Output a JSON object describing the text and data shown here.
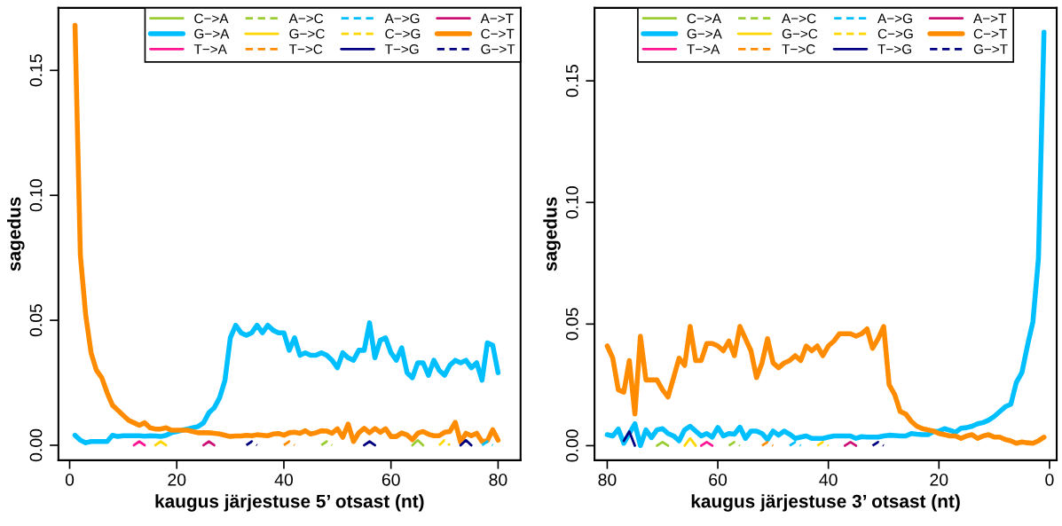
{
  "chart_data": [
    {
      "type": "line",
      "xlabel": "kaugus järjestuse 5’ otsast (nt)",
      "ylabel": "sagedus",
      "xlim": [
        -2.1,
        84.2
      ],
      "ylim": [
        -0.006,
        0.175
      ],
      "xticks": [
        0,
        20,
        40,
        60,
        80
      ],
      "yticks": [
        {
          "value": 0,
          "label": "0.00"
        },
        {
          "value": 0.05,
          "label": "0.05"
        },
        {
          "value": 0.1,
          "label": "0.10"
        },
        {
          "value": 0.15,
          "label": "0.15"
        }
      ],
      "grid": false,
      "legend": "top right",
      "x": [
        1,
        2,
        3,
        4,
        5,
        6,
        7,
        8,
        9,
        10,
        11,
        12,
        13,
        14,
        15,
        16,
        17,
        18,
        19,
        20,
        21,
        22,
        23,
        24,
        25,
        26,
        27,
        28,
        29,
        30,
        31,
        32,
        33,
        34,
        35,
        36,
        37,
        38,
        39,
        40,
        41,
        42,
        43,
        44,
        45,
        46,
        47,
        48,
        49,
        50,
        51,
        52,
        53,
        54,
        55,
        56,
        57,
        58,
        59,
        60,
        61,
        62,
        63,
        64,
        65,
        66,
        67,
        68,
        69,
        70,
        71,
        72,
        73,
        74,
        75,
        76,
        77,
        78,
        79,
        80
      ],
      "series": [
        {
          "name": "C−>A",
          "color": "#9acd32",
          "line_style": "solid",
          "x": [
            64,
            65,
            66
          ],
          "values": [
            0,
            0.002,
            0
          ]
        },
        {
          "name": "G−>A",
          "color": "#00bfff",
          "line_style": "solid",
          "values": [
            0.004,
            0.002,
            0.001,
            0.0015,
            0.0015,
            0.0015,
            0.0015,
            0.004,
            0.0035,
            0.0038,
            0.0038,
            0.0038,
            0.0038,
            0.0036,
            0.0038,
            0.0037,
            0.0035,
            0.004,
            0.005,
            0.0055,
            0.006,
            0.0065,
            0.007,
            0.0075,
            0.009,
            0.013,
            0.015,
            0.019,
            0.026,
            0.043,
            0.048,
            0.045,
            0.044,
            0.045,
            0.048,
            0.045,
            0.048,
            0.046,
            0.045,
            0.045,
            0.038,
            0.043,
            0.036,
            0.037,
            0.036,
            0.036,
            0.037,
            0.036,
            0.034,
            0.031,
            0.037,
            0.035,
            0.034,
            0.038,
            0.038,
            0.049,
            0.035,
            0.042,
            0.043,
            0.037,
            0.034,
            0.039,
            0.029,
            0.027,
            0.033,
            0.033,
            0.028,
            0.034,
            0.03,
            0.028,
            0.032,
            0.034,
            0.033,
            0.034,
            0.031,
            0.033,
            0.026,
            0.041,
            0.04,
            0.029
          ]
        },
        {
          "name": "T−>A",
          "color": "#ff1493",
          "line_style": "solid",
          "x": [
            12,
            13,
            14
          ],
          "values": [
            0,
            0.0015,
            0
          ]
        },
        {
          "name": "A−>C",
          "color": "#9acd32",
          "line_style": "dashed",
          "x": [
            47,
            48,
            49
          ],
          "values": [
            0,
            0.0015,
            0
          ]
        },
        {
          "name": "G−>C",
          "color": "#ffd700",
          "line_style": "solid",
          "x": [
            16,
            17,
            18
          ],
          "values": [
            0,
            0.0015,
            0
          ]
        },
        {
          "name": "T−>C",
          "color": "#ff8c00",
          "line_style": "dashed",
          "x": [
            40,
            41,
            42
          ],
          "values": [
            0,
            0.0015,
            0
          ]
        },
        {
          "name": "A−>G",
          "color": "#00bfff",
          "line_style": "dashed",
          "x": [
            77,
            78,
            79
          ],
          "values": [
            0,
            0.0015,
            0
          ]
        },
        {
          "name": "C−>G",
          "color": "#ffd700",
          "line_style": "dashed",
          "x": [
            69,
            70,
            71
          ],
          "values": [
            0,
            0.002,
            0
          ]
        },
        {
          "name": "T−>G",
          "color": "#000080",
          "line_style": "solid",
          "x": [
            55,
            56,
            57,
            65,
            73,
            74,
            75
          ],
          "values": [
            0,
            0.0015,
            0,
            null,
            0,
            0.002,
            0
          ]
        },
        {
          "name": "A−>T",
          "color": "#cd1076",
          "line_style": "solid",
          "x": [
            25,
            26,
            27
          ],
          "values": [
            0,
            0.0015,
            0
          ]
        },
        {
          "name": "C−>T",
          "color": "#ff8c00",
          "line_style": "solid",
          "values": [
            0.168,
            0.076,
            0.052,
            0.037,
            0.03,
            0.027,
            0.021,
            0.016,
            0.014,
            0.012,
            0.01,
            0.009,
            0.008,
            0.009,
            0.007,
            0.0065,
            0.0065,
            0.007,
            0.006,
            0.006,
            0.006,
            0.006,
            0.0055,
            0.005,
            0.005,
            0.005,
            0.0048,
            0.0045,
            0.004,
            0.0035,
            0.0037,
            0.0037,
            0.004,
            0.0038,
            0.0042,
            0.004,
            0.0038,
            0.0045,
            0.0047,
            0.004,
            0.005,
            0.0052,
            0.0048,
            0.0058,
            0.0045,
            0.005,
            0.0058,
            0.0057,
            0.0048,
            0.0066,
            0.0032,
            0.0085,
            0.0015,
            0.005,
            0.0068,
            0.005,
            0.0067,
            0.0052,
            0.0066,
            0.0035,
            0.0035,
            0.0049,
            0.0041,
            0.0022,
            0.0048,
            0.0055,
            0.0044,
            0.0038,
            0.0038,
            0.0052,
            0.0055,
            0.0092,
            0.0012,
            0.0048,
            0.0038,
            0.0048,
            0.0015,
            0.0018,
            0.0062,
            0.002
          ]
        },
        {
          "name": "G−>T",
          "color": "#000080",
          "line_style": "dashed",
          "x": [
            33,
            34,
            35
          ],
          "values": [
            0,
            0.0015,
            0
          ]
        }
      ]
    },
    {
      "type": "line",
      "xlabel": "kaugus järjestuse 3’ otsast (nt)",
      "ylabel": "sagedus",
      "xlim": [
        82.3,
        -1.3
      ],
      "ylim": [
        -0.006,
        0.18
      ],
      "xticks": [
        0,
        20,
        40,
        60,
        80
      ],
      "yticks": [
        {
          "value": 0,
          "label": "0.00"
        },
        {
          "value": 0.05,
          "label": "0.05"
        },
        {
          "value": 0.1,
          "label": "0.10"
        },
        {
          "value": 0.15,
          "label": "0.15"
        }
      ],
      "grid": false,
      "legend": "top",
      "x": [
        80,
        79,
        78,
        77,
        76,
        75,
        74,
        73,
        72,
        71,
        70,
        69,
        68,
        67,
        66,
        65,
        64,
        63,
        62,
        61,
        60,
        59,
        58,
        57,
        56,
        55,
        54,
        53,
        52,
        51,
        50,
        49,
        48,
        47,
        46,
        45,
        44,
        43,
        42,
        41,
        40,
        39,
        38,
        37,
        36,
        35,
        34,
        33,
        32,
        31,
        30,
        29,
        28,
        27,
        26,
        25,
        24,
        23,
        22,
        21,
        20,
        19,
        18,
        17,
        16,
        15,
        14,
        13,
        12,
        11,
        10,
        9,
        8,
        7,
        6,
        5,
        4,
        3,
        2,
        1
      ],
      "series": [
        {
          "name": "C−>A",
          "color": "#9acd32",
          "line_style": "solid",
          "x": [
            71,
            70,
            69
          ],
          "values": [
            0,
            0.0015,
            0
          ]
        },
        {
          "name": "G−>A",
          "color": "#00bfff",
          "line_style": "solid",
          "values": [
            0.0045,
            0.004,
            0.0068,
            0.001,
            0.005,
            0.009,
            0,
            0.0065,
            0.0033,
            0.0065,
            0.007,
            0.005,
            0.004,
            0.002,
            0.0065,
            0.008,
            0.006,
            0.004,
            0.005,
            0.0035,
            0.0075,
            0.004,
            0.005,
            0.0047,
            0.0076,
            0.003,
            0.006,
            0.006,
            0.005,
            0.0025,
            0.006,
            0.0043,
            0.006,
            0.0047,
            0.003,
            0.0035,
            0.004,
            0.003,
            0.003,
            0.003,
            0.0035,
            0.004,
            0.004,
            0.004,
            0.004,
            0.003,
            0.0037,
            0.0035,
            0.0035,
            0.0035,
            0.004,
            0.0043,
            0.0042,
            0.004,
            0.004,
            0.005,
            0.0047,
            0.0045,
            0.0045,
            0.0058,
            0.006,
            0.007,
            0.0063,
            0.0055,
            0.0072,
            0.0074,
            0.008,
            0.009,
            0.0095,
            0.0105,
            0.012,
            0.014,
            0.016,
            0.017,
            0.026,
            0.03,
            0.041,
            0.051,
            0.077,
            0.17
          ]
        },
        {
          "name": "T−>A",
          "color": "#ff1493",
          "line_style": "solid",
          "x": [
            63,
            62,
            61
          ],
          "values": [
            0,
            0.0015,
            0
          ]
        },
        {
          "name": "A−>C",
          "color": "#9acd32",
          "line_style": "dashed",
          "x": [
            58,
            57,
            56
          ],
          "values": [
            0,
            0.0015,
            0
          ]
        },
        {
          "name": "G−>C",
          "color": "#ffd700",
          "line_style": "solid",
          "x": [
            66,
            65,
            64
          ],
          "values": [
            0,
            0.003,
            0
          ]
        },
        {
          "name": "T−>C",
          "color": "#ff8c00",
          "line_style": "dashed",
          "x": [
            52,
            51,
            50
          ],
          "values": [
            0,
            0.0015,
            0
          ]
        },
        {
          "name": "A−>G",
          "color": "#00bfff",
          "line_style": "dashed",
          "x": [
            47,
            46,
            45
          ],
          "values": [
            0,
            0.0015,
            0
          ]
        },
        {
          "name": "C−>G",
          "color": "#ffd700",
          "line_style": "dashed",
          "x": [
            42,
            41,
            40
          ],
          "values": [
            0,
            0.0015,
            0
          ]
        },
        {
          "name": "T−>G",
          "color": "#000080",
          "line_style": "solid",
          "x": [
            77,
            76,
            75
          ],
          "values": [
            0.002,
            0.0058,
            0
          ]
        },
        {
          "name": "A−>T",
          "color": "#cd1076",
          "line_style": "solid",
          "x": [
            37,
            36,
            35
          ],
          "values": [
            0,
            0.0015,
            0
          ]
        },
        {
          "name": "C−>T",
          "color": "#ff8c00",
          "line_style": "solid",
          "values": [
            0.041,
            0.036,
            0.023,
            0.022,
            0.035,
            0.013,
            0.045,
            0.027,
            0.027,
            0.027,
            0.023,
            0.02,
            0.028,
            0.036,
            0.033,
            0.049,
            0.035,
            0.035,
            0.042,
            0.042,
            0.041,
            0.039,
            0.043,
            0.037,
            0.049,
            0.044,
            0.039,
            0.028,
            0.034,
            0.044,
            0.034,
            0.032,
            0.034,
            0.035,
            0.037,
            0.035,
            0.041,
            0.039,
            0.041,
            0.037,
            0.041,
            0.043,
            0.046,
            0.046,
            0.046,
            0.045,
            0.046,
            0.048,
            0.04,
            0.044,
            0.049,
            0.025,
            0.021,
            0.014,
            0.013,
            0.01,
            0.008,
            0.007,
            0.0065,
            0.006,
            0.005,
            0.0045,
            0.004,
            0.004,
            0.003,
            0.004,
            0.0045,
            0.003,
            0.004,
            0.0045,
            0.0035,
            0.0035,
            0.0025,
            0.002,
            0.001,
            0.0015,
            0.0012,
            0.001,
            0.002,
            0.0035
          ]
        },
        {
          "name": "G−>T",
          "color": "#000080",
          "line_style": "dashed",
          "x": [
            32,
            31,
            30
          ],
          "values": [
            0,
            0.0015,
            0
          ]
        }
      ]
    }
  ]
}
